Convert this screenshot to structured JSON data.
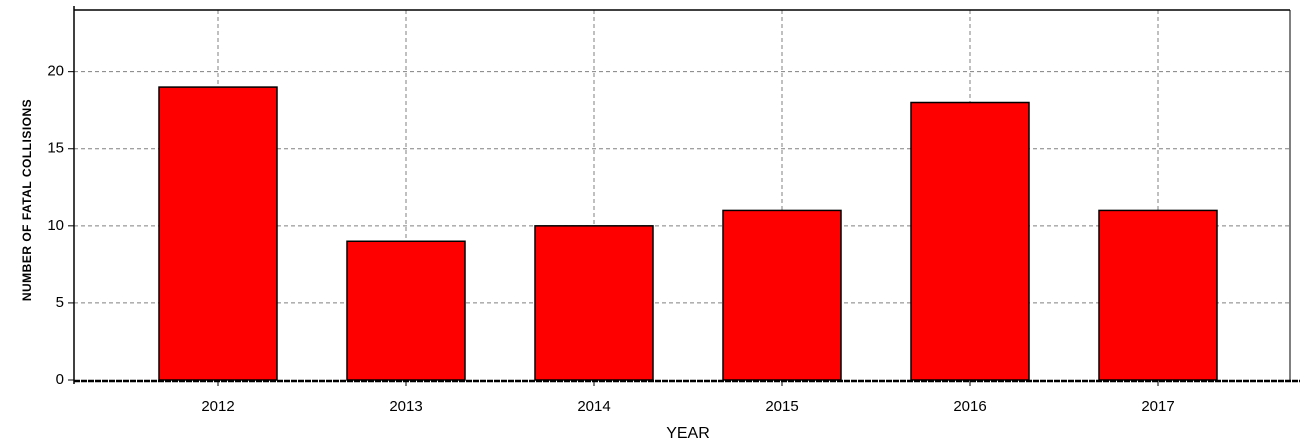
{
  "chart_data": {
    "type": "bar",
    "x_label": "YEAR",
    "y_label": "NUMBER OF FATAL COLLISIONS",
    "categories": [
      "2012",
      "2013",
      "2014",
      "2015",
      "2016",
      "2017"
    ],
    "values": [
      19,
      9,
      10,
      11,
      18,
      11
    ],
    "color": "#ff0000",
    "ylim": [
      0,
      24
    ],
    "yticks": [
      0,
      5,
      10,
      15,
      20
    ],
    "grid": true
  }
}
